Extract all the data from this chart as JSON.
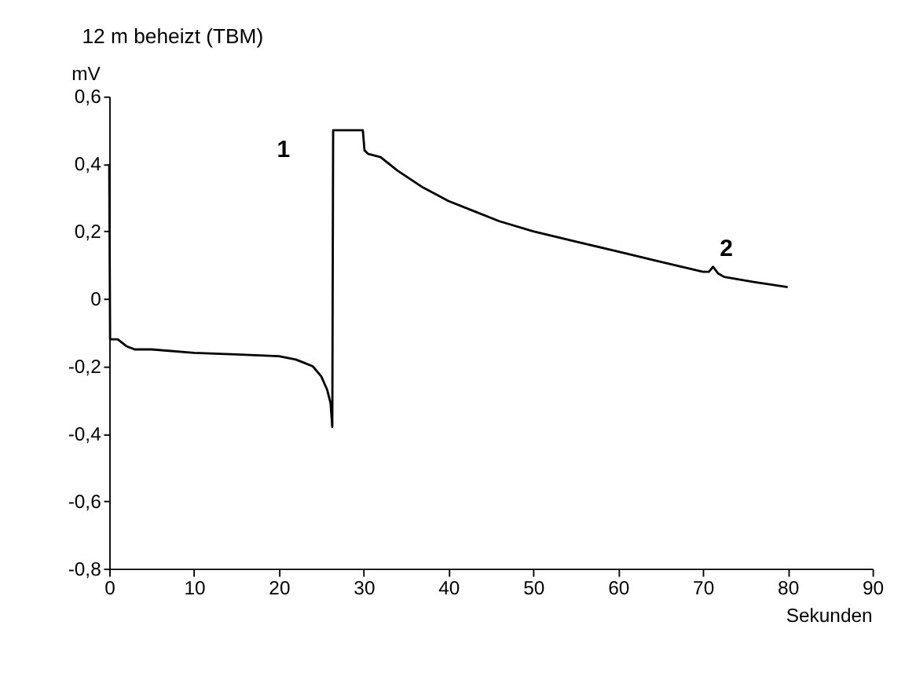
{
  "chart_data": {
    "type": "line",
    "title": "12 m beheizt (TBM)",
    "xlabel": "Sekunden",
    "ylabel": "mV",
    "x": [
      0,
      0.1,
      1,
      2,
      3,
      5,
      10,
      15,
      20,
      22,
      23,
      24,
      25,
      25.7,
      26.1,
      26.3,
      26.4,
      29.9,
      30.1,
      30.5,
      32,
      34,
      37,
      40,
      43,
      46,
      50,
      55,
      60,
      65,
      70,
      70.7,
      71.2,
      71.8,
      72.5,
      76,
      80
    ],
    "series": [
      {
        "color": "#000000",
        "values": [
          0.4,
          -0.12,
          -0.12,
          -0.14,
          -0.15,
          -0.15,
          -0.16,
          -0.165,
          -0.17,
          -0.18,
          -0.19,
          -0.2,
          -0.23,
          -0.27,
          -0.31,
          -0.38,
          0.5,
          0.5,
          0.44,
          0.43,
          0.42,
          0.38,
          0.33,
          0.29,
          0.26,
          0.23,
          0.2,
          0.17,
          0.14,
          0.11,
          0.08,
          0.08,
          0.095,
          0.075,
          0.065,
          0.05,
          0.035
        ]
      }
    ],
    "xlim": [
      0,
      90
    ],
    "xticks": [
      0,
      10,
      20,
      30,
      40,
      50,
      60,
      70,
      80,
      90
    ],
    "ylim": [
      -0.8,
      0.6
    ],
    "yticks": [
      {
        "value": -0.8,
        "label": "-0,8"
      },
      {
        "value": -0.6,
        "label": "-0,6"
      },
      {
        "value": -0.4,
        "label": "-0,4"
      },
      {
        "value": -0.2,
        "label": "-0,2"
      },
      {
        "value": 0,
        "label": "0"
      },
      {
        "value": 0.2,
        "label": "0,2"
      },
      {
        "value": 0.4,
        "label": "0,4"
      },
      {
        "value": 0.6,
        "label": "0,6"
      }
    ],
    "annotations": [
      "1",
      "2"
    ],
    "grid": false,
    "legend": false,
    "marker": "none",
    "line_style": "solid"
  }
}
